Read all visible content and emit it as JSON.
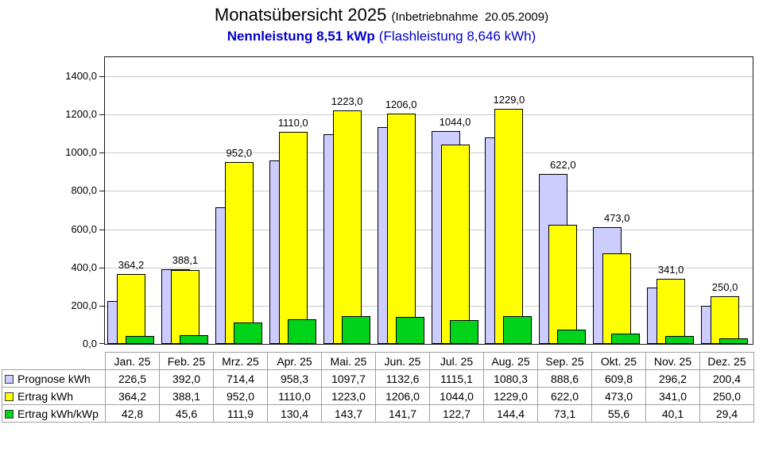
{
  "header": {
    "title": "Monatsübersicht 2025",
    "title_note": "(Inbetriebnahme  20.05.2009)",
    "subtitle_bold": "Nennleistung 8,51 kWp",
    "subtitle_rest": "(Flashleistung 8,646 kWh)",
    "subtitle_color": "#0000CC"
  },
  "chart_data": {
    "type": "bar",
    "title": "Monatsübersicht 2025 (Inbetriebnahme 20.05.2009)",
    "subtitle": "Nennleistung 8,51 kWp (Flashleistung 8,646 kWh)",
    "categories": [
      "Jan. 25",
      "Feb. 25",
      "Mrz. 25",
      "Apr. 25",
      "Mai. 25",
      "Jun. 25",
      "Jul. 25",
      "Aug. 25",
      "Sep. 25",
      "Okt. 25",
      "Nov. 25",
      "Dez. 25"
    ],
    "series": [
      {
        "name": "Prognose kWh",
        "color": "#CCCCFF",
        "values": [
          226.5,
          392.0,
          714.4,
          958.3,
          1097.7,
          1132.6,
          1115.1,
          1080.3,
          888.6,
          609.8,
          296.2,
          200.4
        ]
      },
      {
        "name": "Ertrag kWh",
        "color": "#FFFF00",
        "values": [
          364.2,
          388.1,
          952.0,
          1110.0,
          1223.0,
          1206.0,
          1044.0,
          1229.0,
          622.0,
          473.0,
          341.0,
          250.0
        ]
      },
      {
        "name": "Ertrag kWh/kWp",
        "color": "#00D41A",
        "values": [
          42.8,
          45.6,
          111.9,
          130.4,
          143.7,
          141.7,
          122.7,
          144.4,
          73.1,
          55.6,
          40.1,
          29.4
        ]
      }
    ],
    "bar_value_labels": {
      "from_series": "Ertrag kWh",
      "labels": [
        "364,2",
        "388,1",
        "952,0",
        "1110,0",
        "1223,0",
        "1206,0",
        "1044,0",
        "1229,0",
        "622,0",
        "473,0",
        "341,0",
        "250,0"
      ]
    },
    "ylim": [
      0,
      1500
    ],
    "ytick_step": 200,
    "ytick_max_label": 1400,
    "yticklabels": [
      "0,0",
      "200,0",
      "400,0",
      "600,0",
      "800,0",
      "1000,0",
      "1200,0",
      "1400,0"
    ],
    "grid": true,
    "value_format": "german-comma-1-decimal",
    "legend_position": "table-first-column",
    "style": {
      "gridline_color": "#C9C9C9",
      "bar_border_color": "#000000",
      "table_border_color": "#A0A0A0"
    }
  }
}
